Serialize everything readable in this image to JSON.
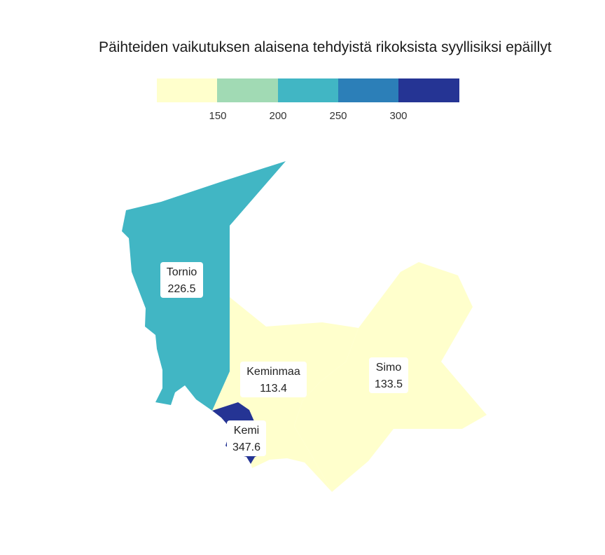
{
  "map": {
    "title": "Päihteiden vaikutuksen alaisena tehdyistä rikoksista syyllisiksi epäillyt"
  },
  "legend": {
    "ticks": [
      "150",
      "200",
      "250",
      "300"
    ],
    "bins": [
      {
        "color": "#ffffcc"
      },
      {
        "color": "#a1dab4"
      },
      {
        "color": "#41b6c4"
      },
      {
        "color": "#2c7fb8"
      },
      {
        "color": "#253494"
      }
    ]
  },
  "regions": [
    {
      "name": "Tornio",
      "value": "226.5",
      "color": "#41b6c4"
    },
    {
      "name": "Keminmaa",
      "value": "113.4",
      "color": "#ffffcc"
    },
    {
      "name": "Simo",
      "value": "133.5",
      "color": "#ffffcc"
    },
    {
      "name": "Kemi",
      "value": "347.6",
      "color": "#253494"
    }
  ]
}
